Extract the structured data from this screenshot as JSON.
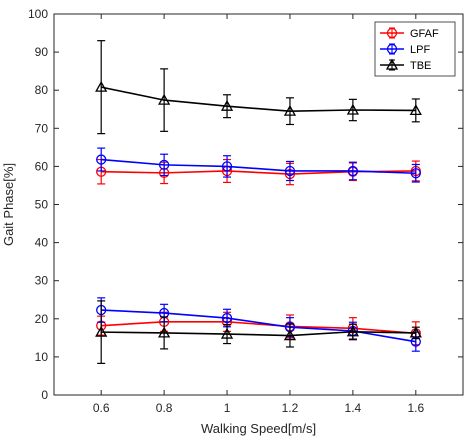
{
  "chart_data": {
    "type": "line",
    "xlabel": "Walking Speed[m/s]",
    "ylabel": "Gait Phase[%]",
    "x": [
      0.6,
      0.8,
      1.0,
      1.2,
      1.4,
      1.6
    ],
    "x_tick_labels": [
      "0.6",
      "0.8",
      "1",
      "1.2",
      "1.4",
      "1.6"
    ],
    "xlim": [
      0.45,
      1.75
    ],
    "ylim": [
      0,
      100
    ],
    "y_ticks": [
      0,
      10,
      20,
      30,
      40,
      50,
      60,
      70,
      80,
      90,
      100
    ],
    "y_tick_labels": [
      "0",
      "10",
      "20",
      "30",
      "40",
      "50",
      "60",
      "70",
      "80",
      "90",
      "100"
    ],
    "grid": false,
    "legend_position": "top-right",
    "series": [
      {
        "name": "GFAF",
        "color": "#ff0000",
        "marker": "circle",
        "groups": [
          {
            "values": [
              58.6,
              58.3,
              58.8,
              58.0,
              58.6,
              58.8
            ],
            "errors": [
              3.2,
              2.8,
              3.0,
              2.8,
              2.3,
              2.6
            ]
          },
          {
            "values": [
              18.2,
              19.2,
              19.2,
              18.0,
              17.5,
              16.2
            ],
            "errors": [
              2.5,
              2.5,
              2.5,
              3.0,
              2.8,
              3.0
            ]
          }
        ]
      },
      {
        "name": "LPF",
        "color": "#0000ff",
        "marker": "circle",
        "groups": [
          {
            "values": [
              61.8,
              60.4,
              60.0,
              58.8,
              58.8,
              58.2
            ],
            "errors": [
              3.0,
              2.8,
              2.8,
              2.5,
              2.3,
              2.3
            ]
          },
          {
            "values": [
              22.3,
              21.5,
              20.2,
              17.8,
              16.8,
              14.0
            ],
            "errors": [
              3.2,
              2.3,
              2.3,
              2.5,
              2.3,
              2.5
            ]
          }
        ]
      },
      {
        "name": "TBE",
        "color": "#000000",
        "marker": "triangle",
        "groups": [
          {
            "values": [
              80.8,
              77.4,
              75.8,
              74.5,
              74.8,
              74.7
            ],
            "errors": [
              12.2,
              8.2,
              3.0,
              3.5,
              2.8,
              3.0
            ]
          },
          {
            "values": [
              16.5,
              16.3,
              16.0,
              15.6,
              16.6,
              16.3
            ],
            "errors": [
              8.2,
              4.2,
              2.5,
              3.0,
              2.0,
              1.5
            ]
          }
        ]
      }
    ]
  }
}
